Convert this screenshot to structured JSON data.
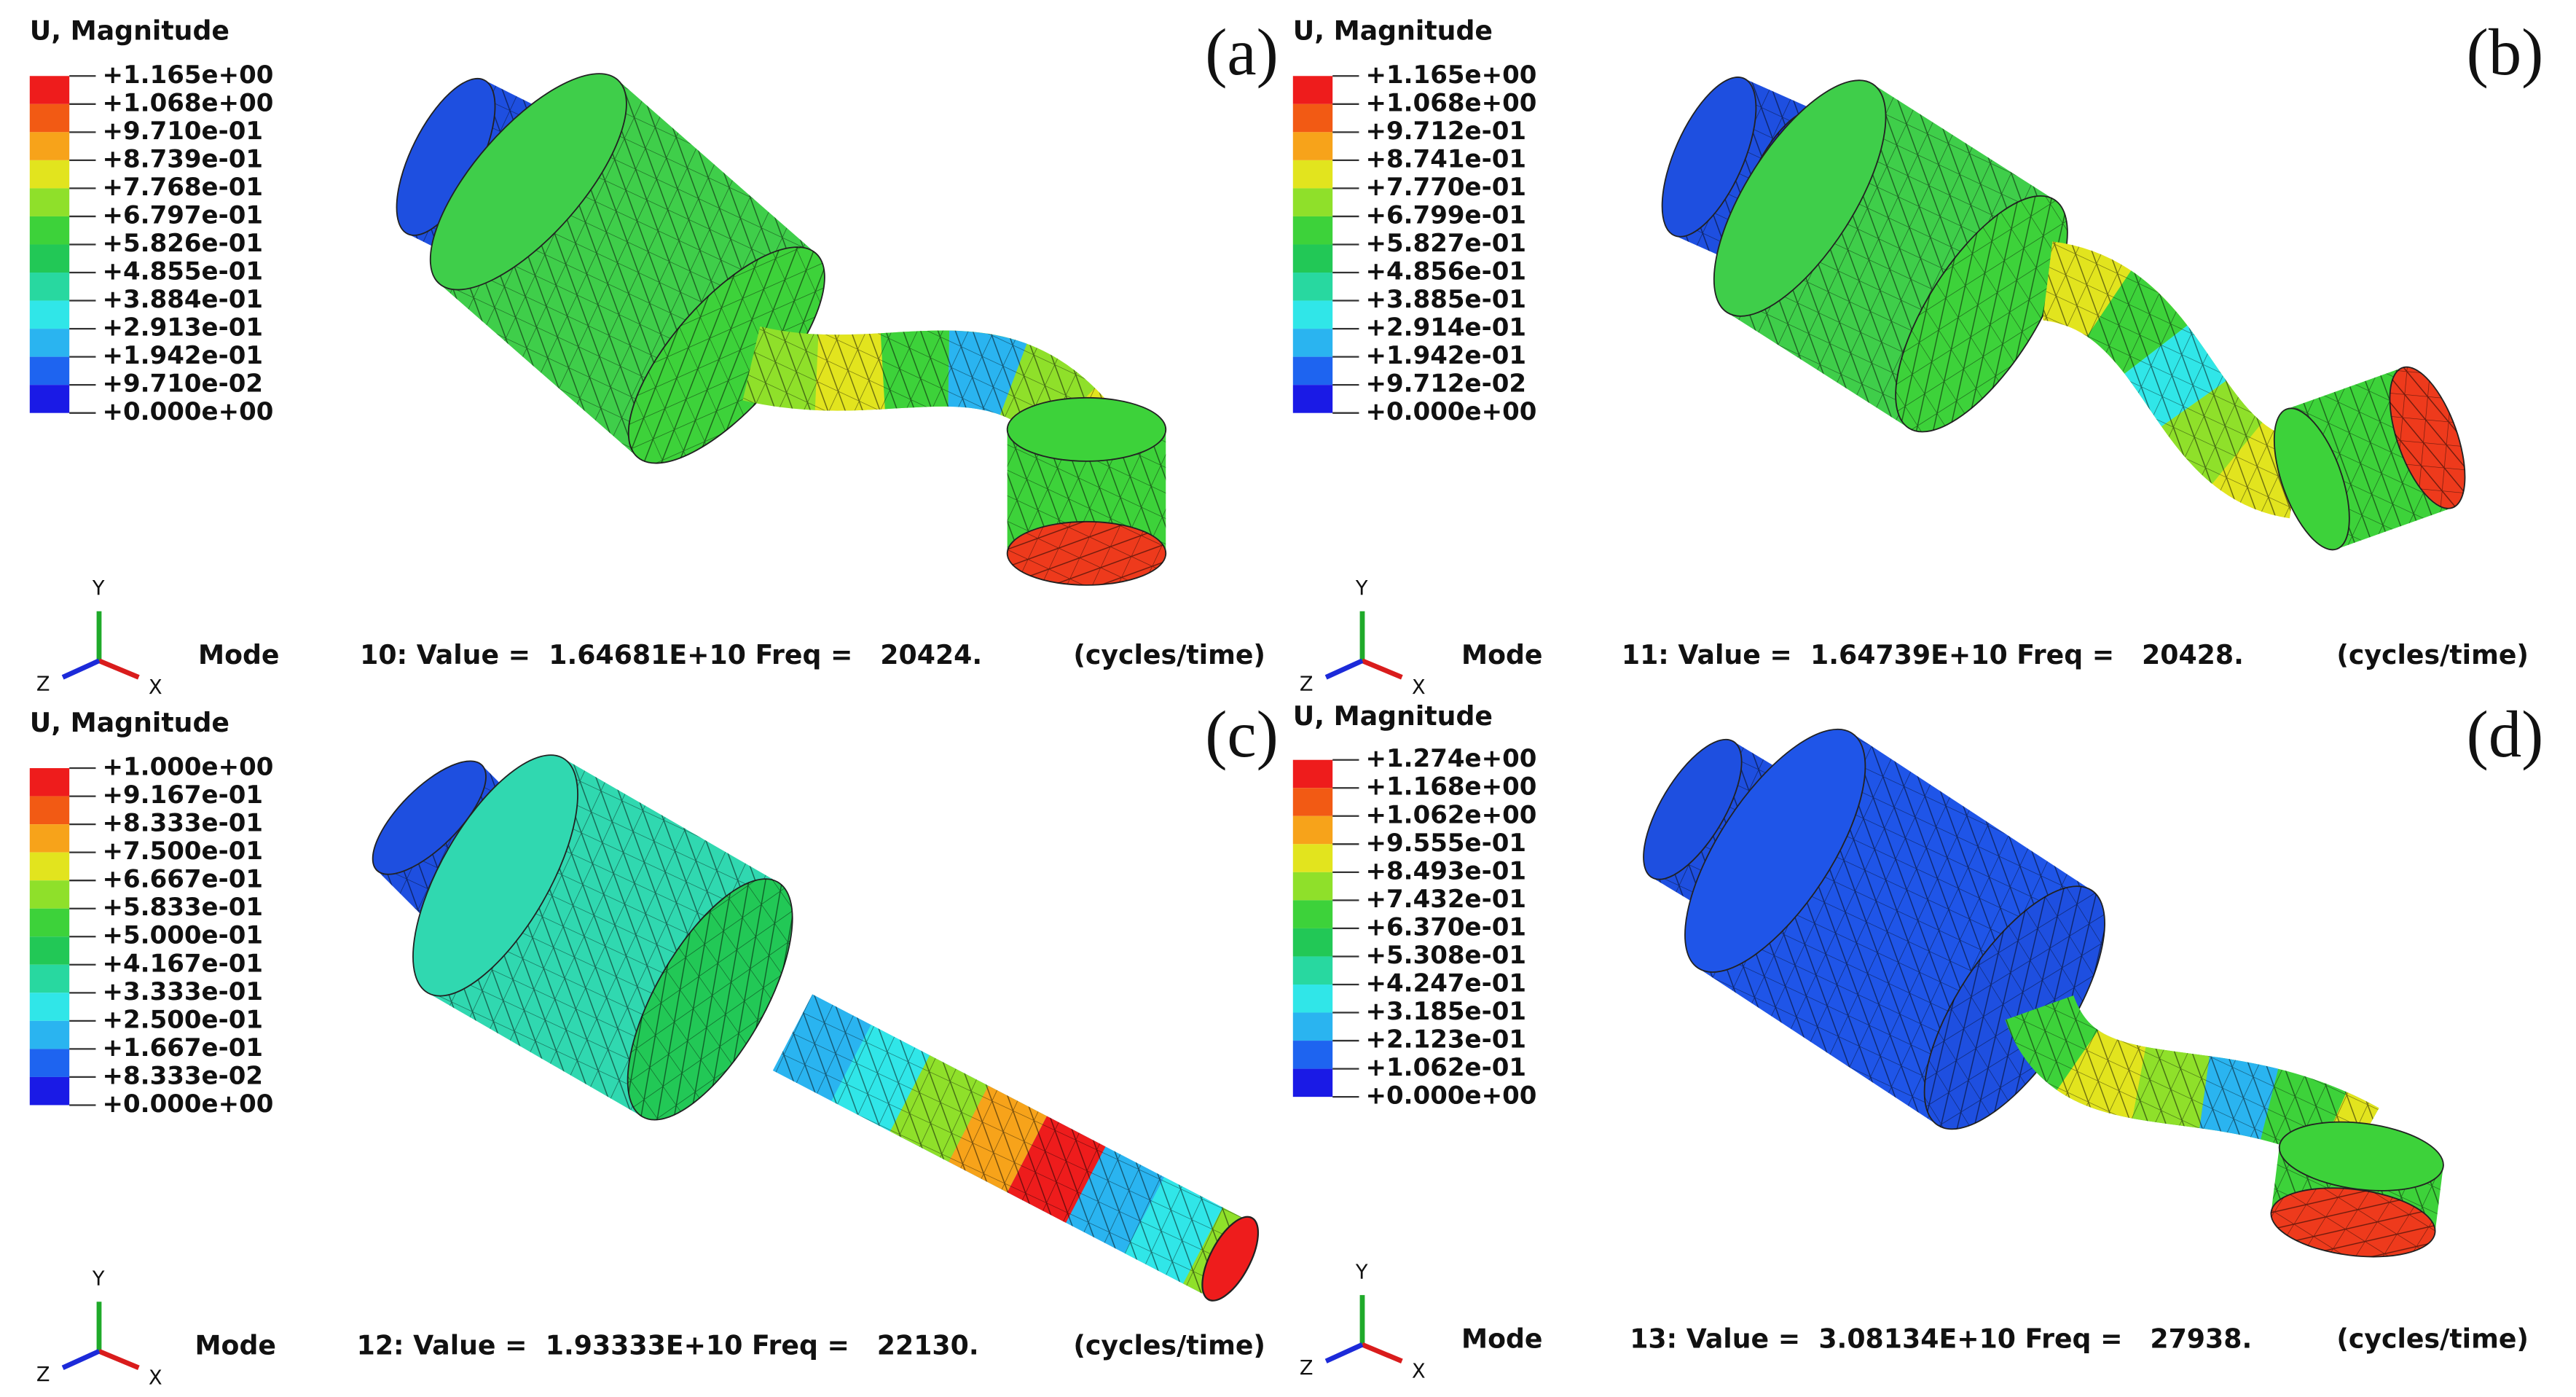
{
  "panels": [
    {
      "label": "(a)",
      "legend": {
        "title": "U, Magnitude",
        "values": [
          "+1.165e+00",
          "+1.068e+00",
          "+9.710e-01",
          "+8.739e-01",
          "+7.768e-01",
          "+6.797e-01",
          "+5.826e-01",
          "+4.855e-01",
          "+3.884e-01",
          "+2.913e-01",
          "+1.942e-01",
          "+9.710e-02",
          "+0.000e+00"
        ]
      },
      "triad": {
        "y": "Y",
        "z": "Z",
        "x": "X"
      },
      "mode": {
        "prefix": "Mode",
        "text": "10: Value =  1.64681E+10 Freq =   20424.",
        "units": "(cycles/time)"
      }
    },
    {
      "label": "(b)",
      "legend": {
        "title": "U, Magnitude",
        "values": [
          "+1.165e+00",
          "+1.068e+00",
          "+9.712e-01",
          "+8.741e-01",
          "+7.770e-01",
          "+6.799e-01",
          "+5.827e-01",
          "+4.856e-01",
          "+3.885e-01",
          "+2.914e-01",
          "+1.942e-01",
          "+9.712e-02",
          "+0.000e+00"
        ]
      },
      "triad": {
        "y": "Y",
        "z": "Z",
        "x": "X"
      },
      "mode": {
        "prefix": "Mode",
        "text": "11: Value =  1.64739E+10 Freq =   20428.",
        "units": "(cycles/time)"
      }
    },
    {
      "label": "(c)",
      "legend": {
        "title": "U, Magnitude",
        "values": [
          "+1.000e+00",
          "+9.167e-01",
          "+8.333e-01",
          "+7.500e-01",
          "+6.667e-01",
          "+5.833e-01",
          "+5.000e-01",
          "+4.167e-01",
          "+3.333e-01",
          "+2.500e-01",
          "+1.667e-01",
          "+8.333e-02",
          "+0.000e+00"
        ]
      },
      "triad": {
        "y": "Y",
        "z": "Z",
        "x": "X"
      },
      "mode": {
        "prefix": "Mode",
        "text": "12: Value =  1.93333E+10 Freq =   22130.",
        "units": "(cycles/time)"
      }
    },
    {
      "label": "(d)",
      "legend": {
        "title": "U, Magnitude",
        "values": [
          "+1.274e+00",
          "+1.168e+00",
          "+1.062e+00",
          "+9.555e-01",
          "+8.493e-01",
          "+7.432e-01",
          "+6.370e-01",
          "+5.308e-01",
          "+4.247e-01",
          "+3.185e-01",
          "+2.123e-01",
          "+1.062e-01",
          "+0.000e+00"
        ]
      },
      "triad": {
        "y": "Y",
        "z": "Z",
        "x": "X"
      },
      "mode": {
        "prefix": "Mode",
        "text": "13: Value =  3.08134E+10 Freq =   27938.",
        "units": "(cycles/time)"
      }
    }
  ]
}
